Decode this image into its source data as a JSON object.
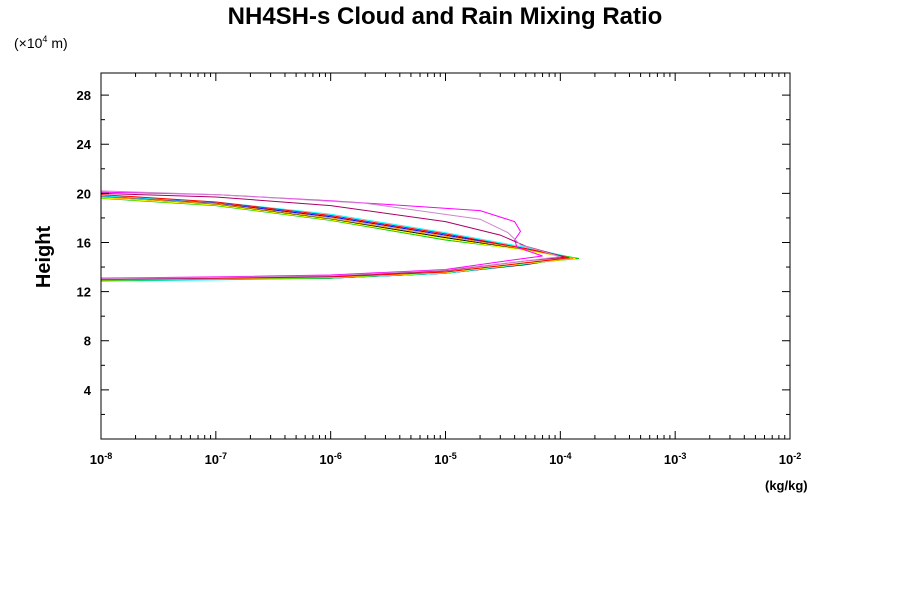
{
  "chart_data": {
    "type": "line",
    "title": "NH4SH-s Cloud and Rain Mixing Ratio",
    "ylabel": "Height",
    "y_scale_note": "(×10",
    "y_scale_exp": "4",
    "y_scale_unit": " m)",
    "xunit": "(kg/kg)",
    "xscale": "log",
    "xlim": [
      1e-08,
      0.01
    ],
    "ylim": [
      0,
      29.8
    ],
    "x_ticks": [
      {
        "base": "10",
        "exp": "-8",
        "value": 1e-08
      },
      {
        "base": "10",
        "exp": "-7",
        "value": 1e-07
      },
      {
        "base": "10",
        "exp": "-6",
        "value": 1e-06
      },
      {
        "base": "10",
        "exp": "-5",
        "value": 1e-05
      },
      {
        "base": "10",
        "exp": "-4",
        "value": 0.0001
      },
      {
        "base": "10",
        "exp": "-3",
        "value": 0.001
      },
      {
        "base": "10",
        "exp": "-2",
        "value": 0.01
      }
    ],
    "y_ticks": [
      "4",
      "8",
      "12",
      "16",
      "20",
      "24",
      "28"
    ],
    "grid": false,
    "series": [
      {
        "color": "#000000",
        "points": [
          [
            1e-08,
            12.9
          ],
          [
            1e-07,
            13.0
          ],
          [
            1e-06,
            13.1
          ],
          [
            1e-05,
            13.5
          ],
          [
            5e-05,
            14.2
          ],
          [
            0.00012,
            14.75
          ],
          [
            5e-05,
            15.4
          ],
          [
            1e-05,
            16.4
          ],
          [
            1e-06,
            17.9
          ],
          [
            1e-07,
            19.1
          ],
          [
            1e-08,
            19.7
          ]
        ]
      },
      {
        "color": "#0000ff",
        "points": [
          [
            1e-08,
            12.9
          ],
          [
            1e-07,
            13.0
          ],
          [
            1e-06,
            13.1
          ],
          [
            1e-05,
            13.5
          ],
          [
            5e-05,
            14.25
          ],
          [
            0.000125,
            14.75
          ],
          [
            5e-05,
            15.5
          ],
          [
            1e-05,
            16.6
          ],
          [
            1e-06,
            18.1
          ],
          [
            1e-07,
            19.2
          ],
          [
            1e-08,
            19.75
          ]
        ]
      },
      {
        "color": "#00ffff",
        "points": [
          [
            1e-08,
            12.85
          ],
          [
            1e-07,
            12.95
          ],
          [
            1e-06,
            13.1
          ],
          [
            1e-05,
            13.5
          ],
          [
            5e-05,
            14.25
          ],
          [
            0.00013,
            14.75
          ],
          [
            5e-05,
            15.6
          ],
          [
            1e-05,
            16.8
          ],
          [
            1e-06,
            18.3
          ],
          [
            1e-07,
            19.3
          ],
          [
            1e-08,
            19.8
          ]
        ]
      },
      {
        "color": "#00cc00",
        "points": [
          [
            1e-08,
            12.9
          ],
          [
            1e-07,
            13.0
          ],
          [
            1e-06,
            13.1
          ],
          [
            1e-05,
            13.55
          ],
          [
            5e-05,
            14.3
          ],
          [
            0.000145,
            14.7
          ],
          [
            6e-05,
            15.3
          ],
          [
            1e-05,
            16.2
          ],
          [
            1e-06,
            17.8
          ],
          [
            1e-07,
            19.0
          ],
          [
            1e-08,
            19.6
          ]
        ]
      },
      {
        "color": "#ffff00",
        "points": [
          [
            1e-08,
            12.95
          ],
          [
            1e-07,
            13.05
          ],
          [
            1e-06,
            13.15
          ],
          [
            1e-05,
            13.55
          ],
          [
            5e-05,
            14.3
          ],
          [
            0.000135,
            14.7
          ],
          [
            5e-05,
            15.35
          ],
          [
            1e-05,
            16.3
          ],
          [
            1e-06,
            17.85
          ],
          [
            1e-07,
            19.05
          ],
          [
            1e-08,
            19.65
          ]
        ]
      },
      {
        "color": "#ff9900",
        "points": [
          [
            1e-08,
            12.95
          ],
          [
            1e-07,
            13.05
          ],
          [
            1e-06,
            13.2
          ],
          [
            1e-05,
            13.6
          ],
          [
            5e-05,
            14.35
          ],
          [
            0.00013,
            14.7
          ],
          [
            5e-05,
            15.45
          ],
          [
            1e-05,
            16.5
          ],
          [
            1e-06,
            18.0
          ],
          [
            1e-07,
            19.15
          ],
          [
            1e-08,
            19.7
          ]
        ]
      },
      {
        "color": "#ff0000",
        "points": [
          [
            1e-08,
            13.0
          ],
          [
            1e-07,
            13.1
          ],
          [
            1e-06,
            13.2
          ],
          [
            1e-05,
            13.6
          ],
          [
            5e-05,
            14.35
          ],
          [
            0.00012,
            14.75
          ],
          [
            5e-05,
            15.5
          ],
          [
            1e-05,
            16.7
          ],
          [
            1e-06,
            18.2
          ],
          [
            1e-07,
            19.3
          ],
          [
            1e-08,
            19.9
          ]
        ]
      },
      {
        "color": "#ff00ff",
        "points": [
          [
            1e-08,
            13.1
          ],
          [
            1e-07,
            13.2
          ],
          [
            1e-06,
            13.35
          ],
          [
            1e-05,
            13.8
          ],
          [
            4e-05,
            14.6
          ],
          [
            7e-05,
            14.9
          ],
          [
            4.2e-05,
            15.6
          ],
          [
            4e-05,
            16.2
          ],
          [
            4.5e-05,
            16.9
          ],
          [
            4e-05,
            17.7
          ],
          [
            2e-05,
            18.6
          ],
          [
            1e-06,
            19.4
          ],
          [
            1e-07,
            19.9
          ],
          [
            1e-08,
            20.1
          ]
        ]
      },
      {
        "color": "#aa0066",
        "points": [
          [
            1e-08,
            13.0
          ],
          [
            1e-07,
            13.1
          ],
          [
            1e-06,
            13.25
          ],
          [
            1e-05,
            13.7
          ],
          [
            5e-05,
            14.5
          ],
          [
            0.00011,
            14.8
          ],
          [
            5e-05,
            15.7
          ],
          [
            3e-05,
            16.6
          ],
          [
            1e-05,
            17.7
          ],
          [
            1e-06,
            19.0
          ],
          [
            1e-07,
            19.7
          ],
          [
            1e-08,
            20.0
          ]
        ]
      },
      {
        "color": "#cc88cc",
        "points": [
          [
            1e-08,
            13.05
          ],
          [
            1e-07,
            13.15
          ],
          [
            1e-06,
            13.3
          ],
          [
            1e-05,
            13.75
          ],
          [
            5e-05,
            14.5
          ],
          [
            0.0001,
            14.85
          ],
          [
            4.5e-05,
            15.8
          ],
          [
            3.5e-05,
            16.8
          ],
          [
            2e-05,
            17.9
          ],
          [
            2e-06,
            19.2
          ],
          [
            1e-07,
            19.9
          ],
          [
            1e-08,
            20.2
          ]
        ]
      }
    ]
  }
}
